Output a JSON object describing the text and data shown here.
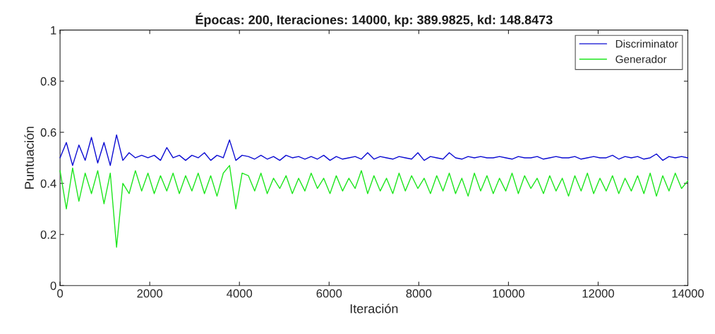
{
  "chart_data": {
    "type": "line",
    "title": "Épocas: 200, Iteraciones: 14000, kp: 389.9825, kd: 148.8473",
    "xlabel": "Iteración",
    "ylabel": "Puntuación",
    "x": [
      0,
      140,
      280,
      420,
      560,
      700,
      840,
      980,
      1120,
      1260,
      1400,
      1540,
      1680,
      1820,
      1960,
      2100,
      2240,
      2380,
      2520,
      2660,
      2800,
      2940,
      3080,
      3220,
      3360,
      3500,
      3640,
      3780,
      3920,
      4060,
      4200,
      4340,
      4480,
      4620,
      4760,
      4900,
      5040,
      5180,
      5320,
      5460,
      5600,
      5740,
      5880,
      6020,
      6160,
      6300,
      6440,
      6580,
      6720,
      6860,
      7000,
      7140,
      7280,
      7420,
      7560,
      7700,
      7840,
      7980,
      8120,
      8260,
      8400,
      8540,
      8680,
      8820,
      8960,
      9100,
      9240,
      9380,
      9520,
      9660,
      9800,
      9940,
      10080,
      10220,
      10360,
      10500,
      10640,
      10780,
      10920,
      11060,
      11200,
      11340,
      11480,
      11620,
      11760,
      11900,
      12040,
      12180,
      12320,
      12460,
      12600,
      12740,
      12880,
      13020,
      13160,
      13300,
      13440,
      13580,
      13720,
      13860,
      14000
    ],
    "series": [
      {
        "name": "Discriminator",
        "color": "#0a0ad2",
        "values": [
          0.5,
          0.56,
          0.47,
          0.55,
          0.49,
          0.58,
          0.48,
          0.56,
          0.47,
          0.59,
          0.49,
          0.52,
          0.5,
          0.51,
          0.5,
          0.51,
          0.49,
          0.54,
          0.5,
          0.51,
          0.49,
          0.51,
          0.5,
          0.52,
          0.49,
          0.51,
          0.5,
          0.57,
          0.49,
          0.51,
          0.505,
          0.495,
          0.51,
          0.495,
          0.505,
          0.49,
          0.51,
          0.5,
          0.505,
          0.495,
          0.505,
          0.495,
          0.51,
          0.49,
          0.505,
          0.495,
          0.5,
          0.505,
          0.495,
          0.52,
          0.495,
          0.505,
          0.5,
          0.495,
          0.505,
          0.5,
          0.495,
          0.52,
          0.49,
          0.505,
          0.5,
          0.495,
          0.52,
          0.5,
          0.495,
          0.505,
          0.5,
          0.505,
          0.5,
          0.5,
          0.505,
          0.5,
          0.495,
          0.505,
          0.5,
          0.5,
          0.505,
          0.495,
          0.5,
          0.505,
          0.5,
          0.5,
          0.505,
          0.495,
          0.5,
          0.505,
          0.5,
          0.5,
          0.51,
          0.495,
          0.505,
          0.5,
          0.505,
          0.495,
          0.5,
          0.515,
          0.49,
          0.505,
          0.5,
          0.505,
          0.5
        ]
      },
      {
        "name": "Generador",
        "color": "#1ee61e",
        "values": [
          0.45,
          0.3,
          0.46,
          0.33,
          0.44,
          0.36,
          0.45,
          0.32,
          0.44,
          0.15,
          0.4,
          0.36,
          0.45,
          0.37,
          0.44,
          0.36,
          0.43,
          0.37,
          0.44,
          0.36,
          0.43,
          0.37,
          0.44,
          0.36,
          0.43,
          0.35,
          0.44,
          0.47,
          0.3,
          0.44,
          0.43,
          0.37,
          0.44,
          0.36,
          0.42,
          0.38,
          0.43,
          0.36,
          0.42,
          0.37,
          0.44,
          0.38,
          0.42,
          0.36,
          0.43,
          0.37,
          0.42,
          0.38,
          0.45,
          0.36,
          0.43,
          0.37,
          0.42,
          0.36,
          0.44,
          0.37,
          0.43,
          0.38,
          0.42,
          0.36,
          0.43,
          0.37,
          0.44,
          0.36,
          0.42,
          0.35,
          0.44,
          0.37,
          0.43,
          0.36,
          0.42,
          0.37,
          0.44,
          0.36,
          0.43,
          0.38,
          0.42,
          0.36,
          0.43,
          0.37,
          0.42,
          0.35,
          0.43,
          0.37,
          0.44,
          0.36,
          0.42,
          0.37,
          0.43,
          0.36,
          0.42,
          0.37,
          0.43,
          0.36,
          0.44,
          0.35,
          0.43,
          0.37,
          0.44,
          0.38,
          0.41
        ]
      }
    ],
    "xlim": [
      0,
      14000
    ],
    "ylim": [
      0,
      1
    ],
    "xticks": [
      0,
      2000,
      4000,
      6000,
      8000,
      10000,
      12000,
      14000
    ],
    "yticks": [
      0,
      0.2,
      0.4,
      0.6,
      0.8,
      {
        "value": 1,
        "label": "1"
      }
    ],
    "legend": "top right",
    "grid": false,
    "marker": "none",
    "line_style": "solid"
  }
}
